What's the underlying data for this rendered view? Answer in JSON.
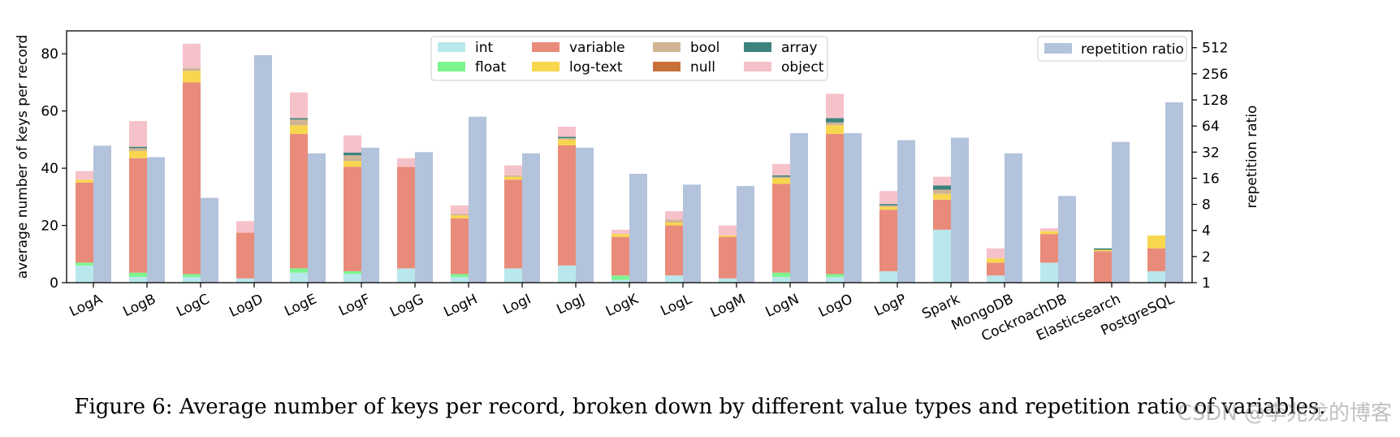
{
  "caption": {
    "label": "Figure 6:",
    "text": "Average number of keys per record, broken down by different value types and repetition ratio of variables."
  },
  "watermark": "CSDN @李兆龙的博客",
  "chart_data": {
    "type": "bar",
    "ylabel": "average number of keys per record",
    "y2label": "repetition ratio",
    "ylim": [
      0,
      88
    ],
    "y2lim": [
      1,
      800
    ],
    "y2scale": "log2",
    "yticks": [
      0,
      20,
      40,
      60,
      80
    ],
    "y2ticks": [
      1,
      2,
      4,
      8,
      16,
      32,
      64,
      128,
      256,
      512
    ],
    "legend_placement": "upper-center",
    "legend2_placement": "upper-right",
    "categories": [
      "LogA",
      "LogB",
      "LogC",
      "LogD",
      "LogE",
      "LogF",
      "LogG",
      "LogH",
      "LogI",
      "LogJ",
      "LogK",
      "LogL",
      "LogM",
      "LogN",
      "LogO",
      "LogP",
      "Spark",
      "MongoDB",
      "CockroachDB",
      "Elasticsearch",
      "PostgreSQL"
    ],
    "series": [
      {
        "name": "int",
        "color": "#b9e8ec",
        "values": [
          6,
          2,
          2,
          1.5,
          3.5,
          3,
          5,
          2,
          5,
          6,
          1,
          2.5,
          1.5,
          2,
          2,
          4,
          18.5,
          2.5,
          7,
          0,
          4
        ]
      },
      {
        "name": "float",
        "color": "#7df58f",
        "values": [
          1,
          1.5,
          1,
          0,
          1.5,
          1,
          0,
          1,
          0,
          0,
          1.5,
          0,
          0,
          1.5,
          1,
          0,
          0,
          0,
          0,
          0,
          0
        ]
      },
      {
        "name": "variable",
        "color": "#e98b7a",
        "values": [
          28,
          40,
          67,
          16,
          47,
          36.5,
          35.5,
          19.5,
          31,
          42,
          13.5,
          17.5,
          14.5,
          31,
          49,
          21.5,
          10.5,
          4.5,
          10,
          11,
          8
        ]
      },
      {
        "name": "log-text",
        "color": "#f8d74e",
        "values": [
          1,
          2.5,
          4,
          0,
          3,
          2,
          0,
          1,
          1,
          2,
          1,
          1,
          0.5,
          2,
          3,
          1,
          2,
          1.5,
          1,
          0.5,
          4.5
        ]
      },
      {
        "name": "bool",
        "color": "#d1b494",
        "values": [
          0,
          1,
          1,
          0,
          2,
          2,
          0,
          0.5,
          0.5,
          0.5,
          0,
          1,
          0,
          0.5,
          1,
          0.5,
          1.5,
          0,
          0,
          0,
          0
        ]
      },
      {
        "name": "null",
        "color": "#c8703a",
        "values": [
          0,
          0,
          0,
          0,
          0,
          0,
          0,
          0,
          0,
          0,
          0,
          0,
          0,
          0,
          0,
          0,
          0,
          0,
          0,
          0,
          0
        ]
      },
      {
        "name": "array",
        "color": "#3d837c",
        "values": [
          0,
          0.5,
          0,
          0,
          0.5,
          1,
          0,
          0,
          0,
          0.5,
          0,
          0,
          0,
          0.5,
          1.5,
          0.5,
          1.5,
          0,
          0,
          0.5,
          0
        ]
      },
      {
        "name": "object",
        "color": "#f6c2ca",
        "values": [
          3,
          9,
          8.5,
          4,
          9,
          6,
          3,
          3,
          3.5,
          3.5,
          1.5,
          3,
          3.5,
          4,
          8.5,
          4.5,
          3,
          3.5,
          1,
          0,
          0
        ]
      }
    ],
    "repetition": {
      "name": "repetition ratio",
      "color": "#b3c3dc",
      "values": [
        38,
        28,
        9.5,
        420,
        31,
        36,
        32,
        82,
        31,
        36,
        18,
        13.5,
        13,
        53,
        53,
        44,
        47,
        31,
        10,
        42,
        120
      ]
    }
  }
}
